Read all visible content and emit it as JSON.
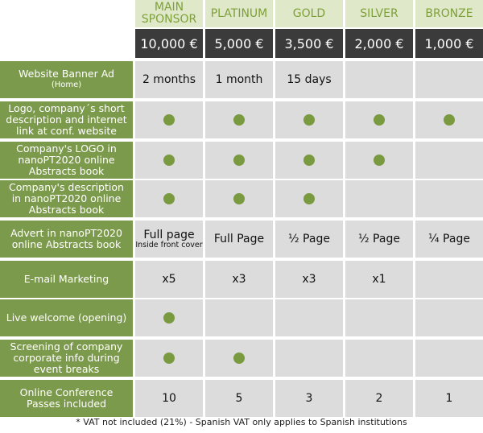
{
  "tiers": [
    {
      "name": "MAIN\nSPONSOR",
      "price": "10,000 €"
    },
    {
      "name": "PLATINUM",
      "price": "5,000 €"
    },
    {
      "name": "GOLD",
      "price": "3,500 €"
    },
    {
      "name": "SILVER",
      "price": "2,000 €"
    },
    {
      "name": "BRONZE",
      "price": "1,000 €"
    }
  ],
  "rows": [
    {
      "label": "Website Banner Ad",
      "sublabel": "(Home)",
      "cells": [
        "2 months",
        "1 month",
        "15 days",
        "",
        ""
      ]
    },
    {
      "label": "Logo, company´s short description and internet link at conf. website",
      "sublabel": "",
      "cells": [
        "dot",
        "dot",
        "dot",
        "dot",
        "dot"
      ]
    },
    {
      "label": "Company's LOGO in nanoPT2020 online Abstracts book",
      "sublabel": "",
      "cells": [
        "dot",
        "dot",
        "dot",
        "dot",
        ""
      ]
    },
    {
      "label": "Company's description in nanoPT2020 online Abstracts book",
      "sublabel": "",
      "cells": [
        "dot",
        "dot",
        "dot",
        "",
        ""
      ]
    },
    {
      "label": "Advert in nanoPT2020 online Abstracts book",
      "sublabel": "",
      "cells": [
        "Full page",
        "Full Page",
        "½ Page",
        "½ Page",
        "¼ Page"
      ],
      "cell_notes": [
        "Inside front cover",
        "",
        "",
        "",
        ""
      ]
    },
    {
      "label": "E-mail Marketing",
      "sublabel": "",
      "cells": [
        "x5",
        "x3",
        "x3",
        "x1",
        ""
      ]
    },
    {
      "label": "Live welcome (opening)",
      "sublabel": "",
      "cells": [
        "dot",
        "",
        "",
        "",
        ""
      ]
    },
    {
      "label": "Screening of company corporate info during event breaks",
      "sublabel": "",
      "cells": [
        "dot",
        "dot",
        "",
        "",
        ""
      ]
    },
    {
      "label": "Online Conference Passes included",
      "sublabel": "",
      "cells": [
        "10",
        "5",
        "3",
        "2",
        "1"
      ]
    }
  ],
  "footnote": "* VAT not included (21%) - Spanish VAT only applies to Spanish institutions",
  "colors": {
    "label_bg": "#7c9a4b",
    "tier_bg": "#dfe8c9",
    "price_bg": "#3b3b3b",
    "cell_bg": "#dcdcdc",
    "dot": "#7a9a40"
  }
}
